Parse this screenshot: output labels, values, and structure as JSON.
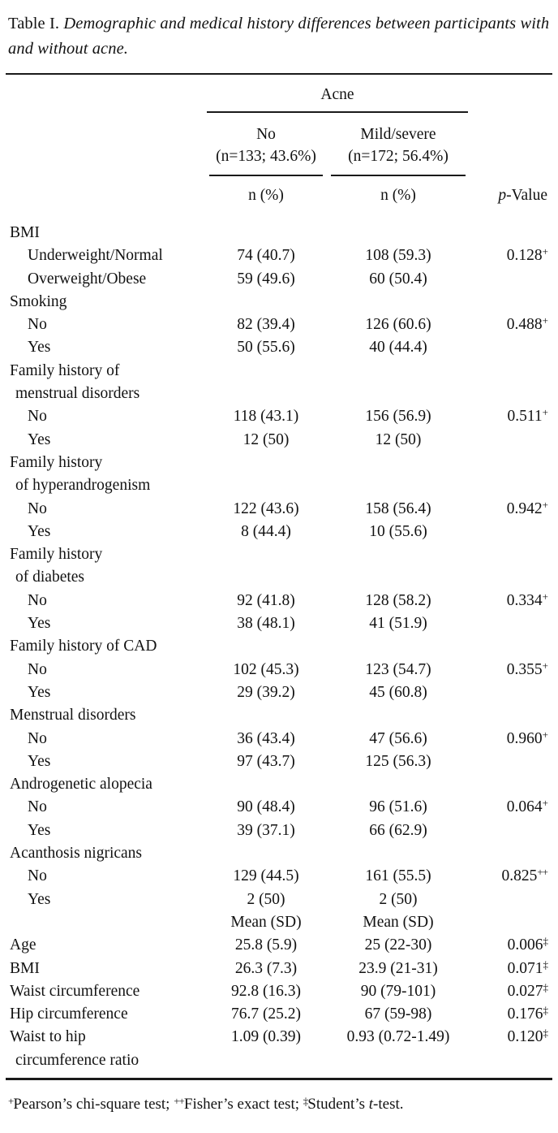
{
  "title": {
    "label": "Table I.",
    "caption": "Demographic and medical history differences between participants with and without acne."
  },
  "header": {
    "group_label": "Acne",
    "col_no_line1": "No",
    "col_no_line2": "(n=133; 43.6%)",
    "col_mild_line1": "Mild/severe",
    "col_mild_line2": "(n=172; 56.4%)",
    "sub_no": "n (%)",
    "sub_mild": "n (%)",
    "p_italic": "p",
    "p_rest": "-Value"
  },
  "rows": [
    {
      "label": "BMI",
      "indent": 0
    },
    {
      "label": "Underweight/Normal",
      "indent": 1,
      "no": "74 (40.7)",
      "acne": "108 (59.3)",
      "p": "0.128",
      "marker": "+"
    },
    {
      "label": "Overweight/Obese",
      "indent": 1,
      "no": "59 (49.6)",
      "acne": "60 (50.4)"
    },
    {
      "label": "Smoking",
      "indent": 0
    },
    {
      "label": "No",
      "indent": 1,
      "no": "82 (39.4)",
      "acne": "126 (60.6)",
      "p": "0.488",
      "marker": "+"
    },
    {
      "label": "Yes",
      "indent": 1,
      "no": "50 (55.6)",
      "acne": "40 (44.4)"
    },
    {
      "label": "Family history of",
      "label2": "menstrual disorders",
      "indent": 0
    },
    {
      "label": "No",
      "indent": 1,
      "no": "118 (43.1)",
      "acne": "156 (56.9)",
      "p": "0.511",
      "marker": "+"
    },
    {
      "label": "Yes",
      "indent": 1,
      "no": "12 (50)",
      "acne": "12 (50)"
    },
    {
      "label": "Family history",
      "label2": "of hyperandrogenism",
      "indent": 0
    },
    {
      "label": "No",
      "indent": 1,
      "no": "122 (43.6)",
      "acne": "158 (56.4)",
      "p": "0.942",
      "marker": "+"
    },
    {
      "label": "Yes",
      "indent": 1,
      "no": "8 (44.4)",
      "acne": "10 (55.6)"
    },
    {
      "label": "Family history",
      "label2": "of diabetes",
      "indent": 0
    },
    {
      "label": "No",
      "indent": 1,
      "no": "92 (41.8)",
      "acne": "128 (58.2)",
      "p": "0.334",
      "marker": "+"
    },
    {
      "label": "Yes",
      "indent": 1,
      "no": "38 (48.1)",
      "acne": "41 (51.9)"
    },
    {
      "label": "Family history of CAD",
      "indent": 0
    },
    {
      "label": "No",
      "indent": 1,
      "no": "102 (45.3)",
      "acne": "123 (54.7)",
      "p": "0.355",
      "marker": "+"
    },
    {
      "label": "Yes",
      "indent": 1,
      "no": "29 (39.2)",
      "acne": "45 (60.8)"
    },
    {
      "label": "Menstrual disorders",
      "indent": 0
    },
    {
      "label": "No",
      "indent": 1,
      "no": "36 (43.4)",
      "acne": "47 (56.6)",
      "p": "0.960",
      "marker": "+"
    },
    {
      "label": "Yes",
      "indent": 1,
      "no": "97 (43.7)",
      "acne": "125 (56.3)"
    },
    {
      "label": "Androgenetic alopecia",
      "indent": 0
    },
    {
      "label": "No",
      "indent": 1,
      "no": "90 (48.4)",
      "acne": "96 (51.6)",
      "p": "0.064",
      "marker": "+"
    },
    {
      "label": "Yes",
      "indent": 1,
      "no": "39 (37.1)",
      "acne": "66 (62.9)"
    },
    {
      "label": "Acanthosis nigricans",
      "indent": 0
    },
    {
      "label": "No",
      "indent": 1,
      "no": "129 (44.5)",
      "acne": "161 (55.5)",
      "p": "0.825",
      "marker": "++"
    },
    {
      "label": "Yes",
      "indent": 1,
      "no": "2 (50)",
      "acne": "2 (50)"
    },
    {
      "label": "",
      "indent": 0,
      "no": "Mean (SD)",
      "acne": "Mean (SD)"
    },
    {
      "label": "Age",
      "indent": 0,
      "no": "25.8 (5.9)",
      "acne": "25 (22-30)",
      "p": "0.006",
      "marker": "‡"
    },
    {
      "label": "BMI",
      "indent": 0,
      "no": "26.3 (7.3)",
      "acne": "23.9 (21-31)",
      "p": "0.071",
      "marker": "‡"
    },
    {
      "label": "Waist circumference",
      "indent": 0,
      "no": "92.8 (16.3)",
      "acne": "90 (79-101)",
      "p": "0.027",
      "marker": "‡"
    },
    {
      "label": "Hip circumference",
      "indent": 0,
      "no": "76.7 (25.2)",
      "acne": "67 (59-98)",
      "p": "0.176",
      "marker": "‡"
    },
    {
      "label": "Waist to hip",
      "label2": "circumference ratio",
      "indent": 0,
      "no": "1.09 (0.39)",
      "acne": "0.93 (0.72-1.49)",
      "p": "0.120",
      "marker": "‡"
    }
  ],
  "footnote": {
    "sup1": "+",
    "text1": "Pearson’s chi-square test; ",
    "sup2": "++",
    "text2": "Fisher’s exact test; ",
    "sup3": "‡",
    "text3a": "Student’s ",
    "text3_italic": "t",
    "text3b": "-test."
  }
}
